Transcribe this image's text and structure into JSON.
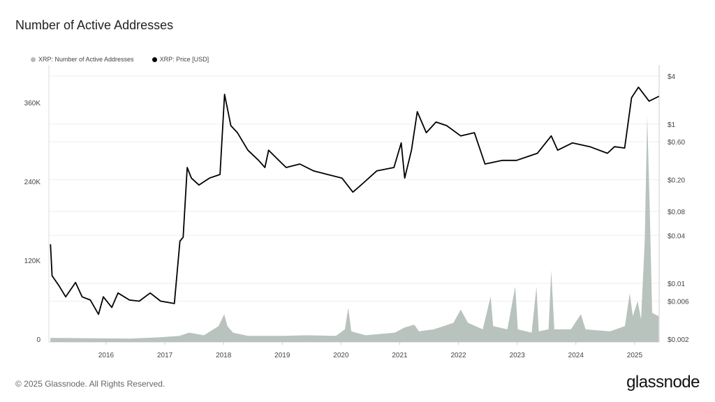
{
  "header": {
    "title": "Number of Active Addresses"
  },
  "footer": {
    "copyright": "© 2025 Glassnode. All Rights Reserved.",
    "logo": "glassnode"
  },
  "chart_data": {
    "type": "line",
    "title": "Number of Active Addresses",
    "legend_placement": "top-left",
    "grid": true,
    "x_ticks": [
      "2016",
      "2017",
      "2018",
      "2019",
      "2020",
      "2021",
      "2022",
      "2023",
      "2024",
      "2025"
    ],
    "y_left": {
      "ticks": [
        0,
        120000,
        240000,
        360000
      ],
      "tick_labels": [
        "0",
        "120K",
        "240K",
        "360K"
      ],
      "range": [
        0,
        420000
      ]
    },
    "y_right": {
      "scale": "log",
      "ticks": [
        4,
        1,
        0.6,
        0.2,
        0.08,
        0.04,
        0.01,
        0.006,
        0.002
      ],
      "tick_labels": [
        "$4",
        "$1",
        "$0.60",
        "$0.20",
        "$0.08",
        "$0.04",
        "$0.01",
        "$0.006",
        "$0.002"
      ],
      "range": [
        0.002,
        5.5
      ]
    },
    "series": [
      {
        "name": "XRP: Number of Active Addresses",
        "type": "area",
        "axis": "left",
        "color": "#b9c3bd",
        "points": [
          [
            "2015-01-20",
            2000
          ],
          [
            "2016-06-01",
            1000
          ],
          [
            "2016-12-01",
            3000
          ],
          [
            "2017-04-01",
            5000
          ],
          [
            "2017-06-01",
            10000
          ],
          [
            "2017-09-01",
            6000
          ],
          [
            "2017-12-01",
            20000
          ],
          [
            "2018-01-05",
            38000
          ],
          [
            "2018-01-25",
            20000
          ],
          [
            "2018-03-01",
            10000
          ],
          [
            "2018-06-01",
            5000
          ],
          [
            "2019-01-01",
            5000
          ],
          [
            "2019-06-01",
            6000
          ],
          [
            "2019-12-01",
            5000
          ],
          [
            "2020-01-25",
            15000
          ],
          [
            "2020-02-15",
            48000
          ],
          [
            "2020-03-05",
            12000
          ],
          [
            "2020-06-01",
            6000
          ],
          [
            "2020-12-01",
            10000
          ],
          [
            "2021-02-01",
            18000
          ],
          [
            "2021-04-01",
            22000
          ],
          [
            "2021-05-01",
            12000
          ],
          [
            "2021-08-01",
            15000
          ],
          [
            "2021-12-01",
            25000
          ],
          [
            "2022-01-15",
            45000
          ],
          [
            "2022-03-01",
            25000
          ],
          [
            "2022-06-01",
            15000
          ],
          [
            "2022-07-20",
            65000
          ],
          [
            "2022-08-05",
            20000
          ],
          [
            "2022-11-01",
            15000
          ],
          [
            "2022-12-20",
            80000
          ],
          [
            "2023-01-05",
            15000
          ],
          [
            "2023-04-01",
            10000
          ],
          [
            "2023-05-01",
            80000
          ],
          [
            "2023-05-15",
            12000
          ],
          [
            "2023-07-15",
            15000
          ],
          [
            "2023-08-01",
            105000
          ],
          [
            "2023-08-20",
            15000
          ],
          [
            "2023-12-01",
            15000
          ],
          [
            "2024-02-01",
            38000
          ],
          [
            "2024-03-01",
            15000
          ],
          [
            "2024-08-01",
            12000
          ],
          [
            "2024-11-01",
            20000
          ],
          [
            "2024-12-01",
            70000
          ],
          [
            "2024-12-20",
            35000
          ],
          [
            "2025-01-20",
            58000
          ],
          [
            "2025-02-10",
            30000
          ],
          [
            "2025-03-05",
            150000
          ],
          [
            "2025-03-20",
            340000
          ],
          [
            "2025-04-05",
            200000
          ],
          [
            "2025-04-20",
            40000
          ],
          [
            "2025-05-30",
            35000
          ]
        ]
      },
      {
        "name": "XRP: Price [USD]",
        "type": "line",
        "axis": "right",
        "color": "#000000",
        "points": [
          [
            "2015-01-20",
            0.031
          ],
          [
            "2015-01-30",
            0.0125
          ],
          [
            "2015-03-15",
            0.0093
          ],
          [
            "2015-04-25",
            0.0068
          ],
          [
            "2015-06-25",
            0.0103
          ],
          [
            "2015-08-05",
            0.0068
          ],
          [
            "2015-09-25",
            0.0062
          ],
          [
            "2015-11-15",
            0.0041
          ],
          [
            "2015-12-15",
            0.0068
          ],
          [
            "2016-02-05",
            0.005
          ],
          [
            "2016-03-15",
            0.0076
          ],
          [
            "2016-05-25",
            0.0062
          ],
          [
            "2016-07-25",
            0.006
          ],
          [
            "2016-10-01",
            0.0076
          ],
          [
            "2016-12-05",
            0.006
          ],
          [
            "2017-03-01",
            0.0056
          ],
          [
            "2017-04-05",
            0.034
          ],
          [
            "2017-04-25",
            0.038
          ],
          [
            "2017-05-20",
            0.285
          ],
          [
            "2017-06-15",
            0.21
          ],
          [
            "2017-08-01",
            0.172
          ],
          [
            "2017-10-05",
            0.21
          ],
          [
            "2017-12-10",
            0.233
          ],
          [
            "2018-01-07",
            2.36
          ],
          [
            "2018-02-15",
            0.955
          ],
          [
            "2018-03-28",
            0.78
          ],
          [
            "2018-06-01",
            0.47
          ],
          [
            "2018-08-07",
            0.35
          ],
          [
            "2018-09-15",
            0.285
          ],
          [
            "2018-10-08",
            0.47
          ],
          [
            "2018-11-20",
            0.385
          ],
          [
            "2019-01-25",
            0.285
          ],
          [
            "2019-04-20",
            0.315
          ],
          [
            "2019-07-15",
            0.258
          ],
          [
            "2019-10-10",
            0.233
          ],
          [
            "2020-01-07",
            0.21
          ],
          [
            "2020-03-15",
            0.14
          ],
          [
            "2020-05-20",
            0.183
          ],
          [
            "2020-08-10",
            0.258
          ],
          [
            "2020-11-25",
            0.285
          ],
          [
            "2021-01-10",
            0.58
          ],
          [
            "2021-02-01",
            0.21
          ],
          [
            "2021-03-15",
            0.47
          ],
          [
            "2021-04-20",
            1.43
          ],
          [
            "2021-06-15",
            0.78
          ],
          [
            "2021-08-15",
            1.06
          ],
          [
            "2021-10-20",
            0.955
          ],
          [
            "2022-01-15",
            0.71
          ],
          [
            "2022-04-10",
            0.78
          ],
          [
            "2022-06-15",
            0.315
          ],
          [
            "2022-10-01",
            0.35
          ],
          [
            "2022-12-28",
            0.35
          ],
          [
            "2023-05-07",
            0.43
          ],
          [
            "2023-08-01",
            0.71
          ],
          [
            "2023-09-10",
            0.47
          ],
          [
            "2023-12-10",
            0.58
          ],
          [
            "2024-03-28",
            0.52
          ],
          [
            "2024-07-15",
            0.43
          ],
          [
            "2024-08-28",
            0.52
          ],
          [
            "2024-10-30",
            0.5
          ],
          [
            "2024-12-12",
            2.14
          ],
          [
            "2025-01-25",
            2.9
          ],
          [
            "2025-04-01",
            1.94
          ],
          [
            "2025-06-01",
            2.23
          ]
        ]
      }
    ]
  }
}
